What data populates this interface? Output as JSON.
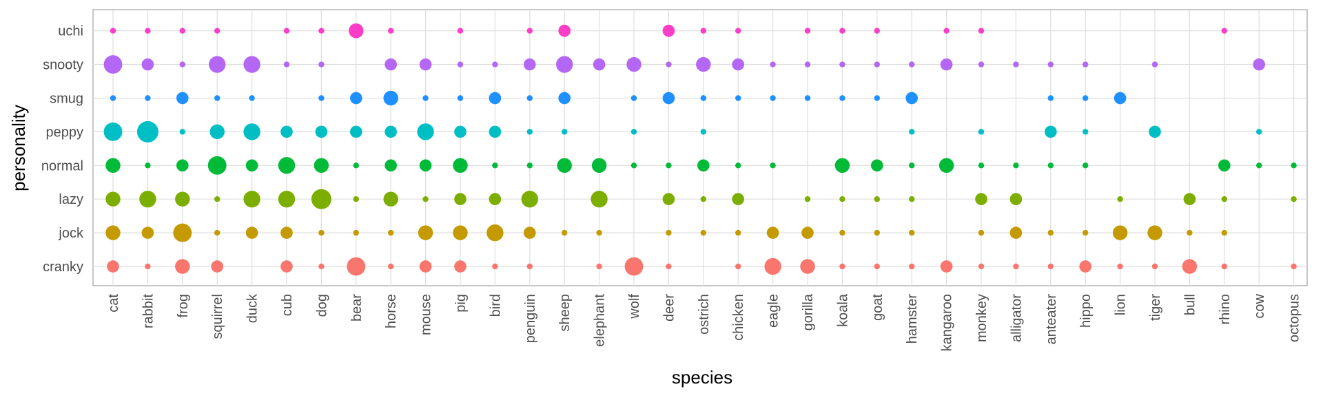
{
  "chart_data": {
    "type": "scatter",
    "xlabel": "species",
    "ylabel": "personality",
    "categories_x": [
      "cat",
      "rabbit",
      "frog",
      "squirrel",
      "duck",
      "cub",
      "dog",
      "bear",
      "horse",
      "mouse",
      "pig",
      "bird",
      "penguin",
      "sheep",
      "elephant",
      "wolf",
      "deer",
      "ostrich",
      "chicken",
      "eagle",
      "gorilla",
      "koala",
      "goat",
      "hamster",
      "kangaroo",
      "monkey",
      "alligator",
      "anteater",
      "hippo",
      "lion",
      "tiger",
      "bull",
      "rhino",
      "cow",
      "octopus"
    ],
    "categories_y": [
      "cranky",
      "jock",
      "lazy",
      "normal",
      "peppy",
      "smug",
      "snooty",
      "uchi"
    ],
    "legend": "none",
    "grid": true,
    "size_encodes": "count",
    "series_colors": {
      "cranky": "#F8766D",
      "jock": "#C49A00",
      "lazy": "#7CAE00",
      "normal": "#00BA38",
      "peppy": "#00BFC4",
      "smug": "#1E90FF",
      "snooty": "#B467F5",
      "uchi": "#FB3DC8"
    },
    "points": [
      {
        "x": "cat",
        "y": "uchi",
        "count": 1
      },
      {
        "x": "cat",
        "y": "snooty",
        "count": 5
      },
      {
        "x": "cat",
        "y": "smug",
        "count": 1
      },
      {
        "x": "cat",
        "y": "peppy",
        "count": 5
      },
      {
        "x": "cat",
        "y": "normal",
        "count": 3
      },
      {
        "x": "cat",
        "y": "lazy",
        "count": 3
      },
      {
        "x": "cat",
        "y": "jock",
        "count": 3
      },
      {
        "x": "cat",
        "y": "cranky",
        "count": 2
      },
      {
        "x": "rabbit",
        "y": "uchi",
        "count": 1
      },
      {
        "x": "rabbit",
        "y": "snooty",
        "count": 2
      },
      {
        "x": "rabbit",
        "y": "smug",
        "count": 1
      },
      {
        "x": "rabbit",
        "y": "peppy",
        "count": 7
      },
      {
        "x": "rabbit",
        "y": "normal",
        "count": 1
      },
      {
        "x": "rabbit",
        "y": "lazy",
        "count": 4
      },
      {
        "x": "rabbit",
        "y": "jock",
        "count": 2
      },
      {
        "x": "rabbit",
        "y": "cranky",
        "count": 1
      },
      {
        "x": "frog",
        "y": "uchi",
        "count": 1
      },
      {
        "x": "frog",
        "y": "snooty",
        "count": 1
      },
      {
        "x": "frog",
        "y": "smug",
        "count": 2
      },
      {
        "x": "frog",
        "y": "peppy",
        "count": 1
      },
      {
        "x": "frog",
        "y": "normal",
        "count": 2
      },
      {
        "x": "frog",
        "y": "lazy",
        "count": 3
      },
      {
        "x": "frog",
        "y": "jock",
        "count": 5
      },
      {
        "x": "frog",
        "y": "cranky",
        "count": 3
      },
      {
        "x": "squirrel",
        "y": "uchi",
        "count": 1
      },
      {
        "x": "squirrel",
        "y": "snooty",
        "count": 4
      },
      {
        "x": "squirrel",
        "y": "smug",
        "count": 1
      },
      {
        "x": "squirrel",
        "y": "peppy",
        "count": 3
      },
      {
        "x": "squirrel",
        "y": "normal",
        "count": 5
      },
      {
        "x": "squirrel",
        "y": "lazy",
        "count": 1
      },
      {
        "x": "squirrel",
        "y": "jock",
        "count": 1
      },
      {
        "x": "squirrel",
        "y": "cranky",
        "count": 2
      },
      {
        "x": "duck",
        "y": "snooty",
        "count": 4
      },
      {
        "x": "duck",
        "y": "smug",
        "count": 1
      },
      {
        "x": "duck",
        "y": "peppy",
        "count": 4
      },
      {
        "x": "duck",
        "y": "normal",
        "count": 2
      },
      {
        "x": "duck",
        "y": "lazy",
        "count": 4
      },
      {
        "x": "duck",
        "y": "jock",
        "count": 2
      },
      {
        "x": "cub",
        "y": "uchi",
        "count": 1
      },
      {
        "x": "cub",
        "y": "snooty",
        "count": 1
      },
      {
        "x": "cub",
        "y": "peppy",
        "count": 2
      },
      {
        "x": "cub",
        "y": "normal",
        "count": 4
      },
      {
        "x": "cub",
        "y": "lazy",
        "count": 4
      },
      {
        "x": "cub",
        "y": "jock",
        "count": 2
      },
      {
        "x": "cub",
        "y": "cranky",
        "count": 2
      },
      {
        "x": "dog",
        "y": "uchi",
        "count": 1
      },
      {
        "x": "dog",
        "y": "snooty",
        "count": 1
      },
      {
        "x": "dog",
        "y": "smug",
        "count": 1
      },
      {
        "x": "dog",
        "y": "peppy",
        "count": 2
      },
      {
        "x": "dog",
        "y": "normal",
        "count": 3
      },
      {
        "x": "dog",
        "y": "lazy",
        "count": 6
      },
      {
        "x": "dog",
        "y": "jock",
        "count": 1
      },
      {
        "x": "dog",
        "y": "cranky",
        "count": 1
      },
      {
        "x": "bear",
        "y": "uchi",
        "count": 3
      },
      {
        "x": "bear",
        "y": "smug",
        "count": 2
      },
      {
        "x": "bear",
        "y": "peppy",
        "count": 2
      },
      {
        "x": "bear",
        "y": "normal",
        "count": 1
      },
      {
        "x": "bear",
        "y": "lazy",
        "count": 1
      },
      {
        "x": "bear",
        "y": "jock",
        "count": 1
      },
      {
        "x": "bear",
        "y": "cranky",
        "count": 5
      },
      {
        "x": "horse",
        "y": "uchi",
        "count": 1
      },
      {
        "x": "horse",
        "y": "snooty",
        "count": 2
      },
      {
        "x": "horse",
        "y": "smug",
        "count": 3
      },
      {
        "x": "horse",
        "y": "peppy",
        "count": 2
      },
      {
        "x": "horse",
        "y": "normal",
        "count": 2
      },
      {
        "x": "horse",
        "y": "lazy",
        "count": 3
      },
      {
        "x": "horse",
        "y": "jock",
        "count": 1
      },
      {
        "x": "horse",
        "y": "cranky",
        "count": 1
      },
      {
        "x": "mouse",
        "y": "snooty",
        "count": 2
      },
      {
        "x": "mouse",
        "y": "smug",
        "count": 1
      },
      {
        "x": "mouse",
        "y": "peppy",
        "count": 4
      },
      {
        "x": "mouse",
        "y": "normal",
        "count": 2
      },
      {
        "x": "mouse",
        "y": "lazy",
        "count": 1
      },
      {
        "x": "mouse",
        "y": "jock",
        "count": 3
      },
      {
        "x": "mouse",
        "y": "cranky",
        "count": 2
      },
      {
        "x": "pig",
        "y": "uchi",
        "count": 1
      },
      {
        "x": "pig",
        "y": "snooty",
        "count": 1
      },
      {
        "x": "pig",
        "y": "smug",
        "count": 1
      },
      {
        "x": "pig",
        "y": "peppy",
        "count": 2
      },
      {
        "x": "pig",
        "y": "normal",
        "count": 3
      },
      {
        "x": "pig",
        "y": "lazy",
        "count": 2
      },
      {
        "x": "pig",
        "y": "jock",
        "count": 3
      },
      {
        "x": "pig",
        "y": "cranky",
        "count": 2
      },
      {
        "x": "bird",
        "y": "snooty",
        "count": 1
      },
      {
        "x": "bird",
        "y": "smug",
        "count": 2
      },
      {
        "x": "bird",
        "y": "peppy",
        "count": 2
      },
      {
        "x": "bird",
        "y": "normal",
        "count": 1
      },
      {
        "x": "bird",
        "y": "lazy",
        "count": 2
      },
      {
        "x": "bird",
        "y": "jock",
        "count": 4
      },
      {
        "x": "bird",
        "y": "cranky",
        "count": 1
      },
      {
        "x": "penguin",
        "y": "uchi",
        "count": 1
      },
      {
        "x": "penguin",
        "y": "snooty",
        "count": 2
      },
      {
        "x": "penguin",
        "y": "smug",
        "count": 1
      },
      {
        "x": "penguin",
        "y": "peppy",
        "count": 1
      },
      {
        "x": "penguin",
        "y": "normal",
        "count": 1
      },
      {
        "x": "penguin",
        "y": "lazy",
        "count": 4
      },
      {
        "x": "penguin",
        "y": "jock",
        "count": 2
      },
      {
        "x": "penguin",
        "y": "cranky",
        "count": 1
      },
      {
        "x": "sheep",
        "y": "uchi",
        "count": 2
      },
      {
        "x": "sheep",
        "y": "snooty",
        "count": 4
      },
      {
        "x": "sheep",
        "y": "smug",
        "count": 2
      },
      {
        "x": "sheep",
        "y": "peppy",
        "count": 1
      },
      {
        "x": "sheep",
        "y": "normal",
        "count": 3
      },
      {
        "x": "sheep",
        "y": "jock",
        "count": 1
      },
      {
        "x": "elephant",
        "y": "snooty",
        "count": 2
      },
      {
        "x": "elephant",
        "y": "normal",
        "count": 3
      },
      {
        "x": "elephant",
        "y": "lazy",
        "count": 4
      },
      {
        "x": "elephant",
        "y": "jock",
        "count": 1
      },
      {
        "x": "elephant",
        "y": "cranky",
        "count": 1
      },
      {
        "x": "wolf",
        "y": "snooty",
        "count": 3
      },
      {
        "x": "wolf",
        "y": "smug",
        "count": 1
      },
      {
        "x": "wolf",
        "y": "peppy",
        "count": 1
      },
      {
        "x": "wolf",
        "y": "normal",
        "count": 1
      },
      {
        "x": "wolf",
        "y": "cranky",
        "count": 5
      },
      {
        "x": "deer",
        "y": "uchi",
        "count": 2
      },
      {
        "x": "deer",
        "y": "snooty",
        "count": 1
      },
      {
        "x": "deer",
        "y": "smug",
        "count": 2
      },
      {
        "x": "deer",
        "y": "normal",
        "count": 1
      },
      {
        "x": "deer",
        "y": "lazy",
        "count": 2
      },
      {
        "x": "deer",
        "y": "jock",
        "count": 1
      },
      {
        "x": "deer",
        "y": "cranky",
        "count": 1
      },
      {
        "x": "ostrich",
        "y": "uchi",
        "count": 1
      },
      {
        "x": "ostrich",
        "y": "snooty",
        "count": 3
      },
      {
        "x": "ostrich",
        "y": "smug",
        "count": 1
      },
      {
        "x": "ostrich",
        "y": "peppy",
        "count": 1
      },
      {
        "x": "ostrich",
        "y": "normal",
        "count": 2
      },
      {
        "x": "ostrich",
        "y": "lazy",
        "count": 1
      },
      {
        "x": "ostrich",
        "y": "jock",
        "count": 1
      },
      {
        "x": "chicken",
        "y": "uchi",
        "count": 1
      },
      {
        "x": "chicken",
        "y": "snooty",
        "count": 2
      },
      {
        "x": "chicken",
        "y": "smug",
        "count": 1
      },
      {
        "x": "chicken",
        "y": "normal",
        "count": 1
      },
      {
        "x": "chicken",
        "y": "lazy",
        "count": 2
      },
      {
        "x": "chicken",
        "y": "jock",
        "count": 1
      },
      {
        "x": "chicken",
        "y": "cranky",
        "count": 1
      },
      {
        "x": "eagle",
        "y": "snooty",
        "count": 1
      },
      {
        "x": "eagle",
        "y": "smug",
        "count": 1
      },
      {
        "x": "eagle",
        "y": "normal",
        "count": 1
      },
      {
        "x": "eagle",
        "y": "jock",
        "count": 2
      },
      {
        "x": "eagle",
        "y": "cranky",
        "count": 4
      },
      {
        "x": "gorilla",
        "y": "uchi",
        "count": 1
      },
      {
        "x": "gorilla",
        "y": "snooty",
        "count": 1
      },
      {
        "x": "gorilla",
        "y": "smug",
        "count": 1
      },
      {
        "x": "gorilla",
        "y": "lazy",
        "count": 1
      },
      {
        "x": "gorilla",
        "y": "jock",
        "count": 2
      },
      {
        "x": "gorilla",
        "y": "cranky",
        "count": 3
      },
      {
        "x": "koala",
        "y": "uchi",
        "count": 1
      },
      {
        "x": "koala",
        "y": "snooty",
        "count": 1
      },
      {
        "x": "koala",
        "y": "smug",
        "count": 1
      },
      {
        "x": "koala",
        "y": "normal",
        "count": 3
      },
      {
        "x": "koala",
        "y": "lazy",
        "count": 1
      },
      {
        "x": "koala",
        "y": "jock",
        "count": 1
      },
      {
        "x": "koala",
        "y": "cranky",
        "count": 1
      },
      {
        "x": "goat",
        "y": "uchi",
        "count": 1
      },
      {
        "x": "goat",
        "y": "snooty",
        "count": 1
      },
      {
        "x": "goat",
        "y": "smug",
        "count": 1
      },
      {
        "x": "goat",
        "y": "normal",
        "count": 2
      },
      {
        "x": "goat",
        "y": "lazy",
        "count": 1
      },
      {
        "x": "goat",
        "y": "jock",
        "count": 1
      },
      {
        "x": "goat",
        "y": "cranky",
        "count": 1
      },
      {
        "x": "hamster",
        "y": "snooty",
        "count": 1
      },
      {
        "x": "hamster",
        "y": "smug",
        "count": 2
      },
      {
        "x": "hamster",
        "y": "peppy",
        "count": 1
      },
      {
        "x": "hamster",
        "y": "normal",
        "count": 1
      },
      {
        "x": "hamster",
        "y": "lazy",
        "count": 1
      },
      {
        "x": "hamster",
        "y": "jock",
        "count": 1
      },
      {
        "x": "hamster",
        "y": "cranky",
        "count": 1
      },
      {
        "x": "kangaroo",
        "y": "uchi",
        "count": 1
      },
      {
        "x": "kangaroo",
        "y": "snooty",
        "count": 2
      },
      {
        "x": "kangaroo",
        "y": "normal",
        "count": 3
      },
      {
        "x": "kangaroo",
        "y": "cranky",
        "count": 2
      },
      {
        "x": "monkey",
        "y": "uchi",
        "count": 1
      },
      {
        "x": "monkey",
        "y": "snooty",
        "count": 1
      },
      {
        "x": "monkey",
        "y": "peppy",
        "count": 1
      },
      {
        "x": "monkey",
        "y": "normal",
        "count": 1
      },
      {
        "x": "monkey",
        "y": "lazy",
        "count": 2
      },
      {
        "x": "monkey",
        "y": "jock",
        "count": 1
      },
      {
        "x": "monkey",
        "y": "cranky",
        "count": 1
      },
      {
        "x": "alligator",
        "y": "snooty",
        "count": 1
      },
      {
        "x": "alligator",
        "y": "normal",
        "count": 1
      },
      {
        "x": "alligator",
        "y": "lazy",
        "count": 2
      },
      {
        "x": "alligator",
        "y": "jock",
        "count": 2
      },
      {
        "x": "alligator",
        "y": "cranky",
        "count": 1
      },
      {
        "x": "anteater",
        "y": "snooty",
        "count": 1
      },
      {
        "x": "anteater",
        "y": "smug",
        "count": 1
      },
      {
        "x": "anteater",
        "y": "peppy",
        "count": 2
      },
      {
        "x": "anteater",
        "y": "normal",
        "count": 1
      },
      {
        "x": "anteater",
        "y": "jock",
        "count": 1
      },
      {
        "x": "anteater",
        "y": "cranky",
        "count": 1
      },
      {
        "x": "hippo",
        "y": "snooty",
        "count": 1
      },
      {
        "x": "hippo",
        "y": "smug",
        "count": 1
      },
      {
        "x": "hippo",
        "y": "peppy",
        "count": 1
      },
      {
        "x": "hippo",
        "y": "normal",
        "count": 1
      },
      {
        "x": "hippo",
        "y": "jock",
        "count": 1
      },
      {
        "x": "hippo",
        "y": "cranky",
        "count": 2
      },
      {
        "x": "lion",
        "y": "smug",
        "count": 2
      },
      {
        "x": "lion",
        "y": "lazy",
        "count": 1
      },
      {
        "x": "lion",
        "y": "jock",
        "count": 3
      },
      {
        "x": "lion",
        "y": "cranky",
        "count": 1
      },
      {
        "x": "tiger",
        "y": "snooty",
        "count": 1
      },
      {
        "x": "tiger",
        "y": "peppy",
        "count": 2
      },
      {
        "x": "tiger",
        "y": "jock",
        "count": 3
      },
      {
        "x": "tiger",
        "y": "cranky",
        "count": 1
      },
      {
        "x": "bull",
        "y": "lazy",
        "count": 2
      },
      {
        "x": "bull",
        "y": "jock",
        "count": 1
      },
      {
        "x": "bull",
        "y": "cranky",
        "count": 3
      },
      {
        "x": "rhino",
        "y": "uchi",
        "count": 1
      },
      {
        "x": "rhino",
        "y": "normal",
        "count": 2
      },
      {
        "x": "rhino",
        "y": "lazy",
        "count": 1
      },
      {
        "x": "rhino",
        "y": "jock",
        "count": 1
      },
      {
        "x": "rhino",
        "y": "cranky",
        "count": 1
      },
      {
        "x": "cow",
        "y": "snooty",
        "count": 2
      },
      {
        "x": "cow",
        "y": "peppy",
        "count": 1
      },
      {
        "x": "cow",
        "y": "normal",
        "count": 1
      },
      {
        "x": "octopus",
        "y": "normal",
        "count": 1
      },
      {
        "x": "octopus",
        "y": "lazy",
        "count": 1
      },
      {
        "x": "octopus",
        "y": "cranky",
        "count": 1
      }
    ]
  }
}
